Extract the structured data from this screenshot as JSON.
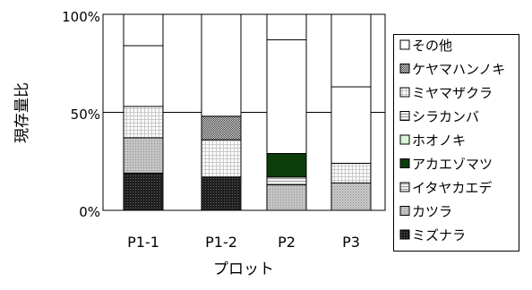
{
  "chart_data": {
    "type": "bar",
    "stacked": true,
    "percent": true,
    "categories": [
      "P1-1",
      "P1-2",
      "P2",
      "P3"
    ],
    "xlabel": "プロット",
    "ylabel": "現存量比",
    "ylim": [
      0,
      100
    ],
    "yticks": [
      "0%",
      "50%",
      "100%"
    ],
    "grid": false,
    "legend_position": "right",
    "series": [
      {
        "name": "ミズナラ",
        "values": [
          19,
          17,
          0,
          0
        ],
        "color": "#2e2e2e",
        "pattern": "dark-dots"
      },
      {
        "name": "カツラ",
        "values": [
          18,
          0,
          0,
          0
        ],
        "color": "#b4b4b4",
        "pattern": "light-dots"
      },
      {
        "name": "イタヤカエデ",
        "values": [
          0,
          0,
          17,
          0
        ],
        "color": "#d0d0d0",
        "pattern": "hlines"
      },
      {
        "name": "アカエゾマツ",
        "values": [
          0,
          0,
          12,
          0
        ],
        "color": "#0b3d0b",
        "pattern": "solid"
      },
      {
        "name": "ホオノキ",
        "values": [
          0,
          0,
          0,
          0
        ],
        "color": "#d8f5d8",
        "pattern": "solid"
      },
      {
        "name": "シラカンバ",
        "values": [
          0,
          0,
          0,
          14
        ],
        "color": "#ebebeb",
        "pattern": "hlines"
      },
      {
        "name": "ミヤマザクラ",
        "values": [
          0,
          19,
          0,
          10
        ],
        "color": "#f4f4f4",
        "pattern": "grid"
      },
      {
        "name": "ケヤマハンノキ",
        "values": [
          0,
          12,
          0,
          0
        ],
        "color": "#777777",
        "pattern": "check"
      },
      {
        "name": "その他",
        "values": [
          47,
          52,
          58,
          39
        ],
        "color": "#ffffff",
        "pattern": "solid"
      }
    ],
    "extra_segments": [
      {
        "category": "P2",
        "from": 0,
        "to": 13,
        "color": "#d6d6d6",
        "pattern": "light-dots"
      },
      {
        "category": "P3",
        "from": 0,
        "to": 36,
        "color": "#c8c8c8",
        "pattern": "light-dots"
      },
      {
        "category": "P1-1",
        "from": 37,
        "to": 53,
        "color": "#f4f4f4",
        "pattern": "grid"
      }
    ]
  }
}
